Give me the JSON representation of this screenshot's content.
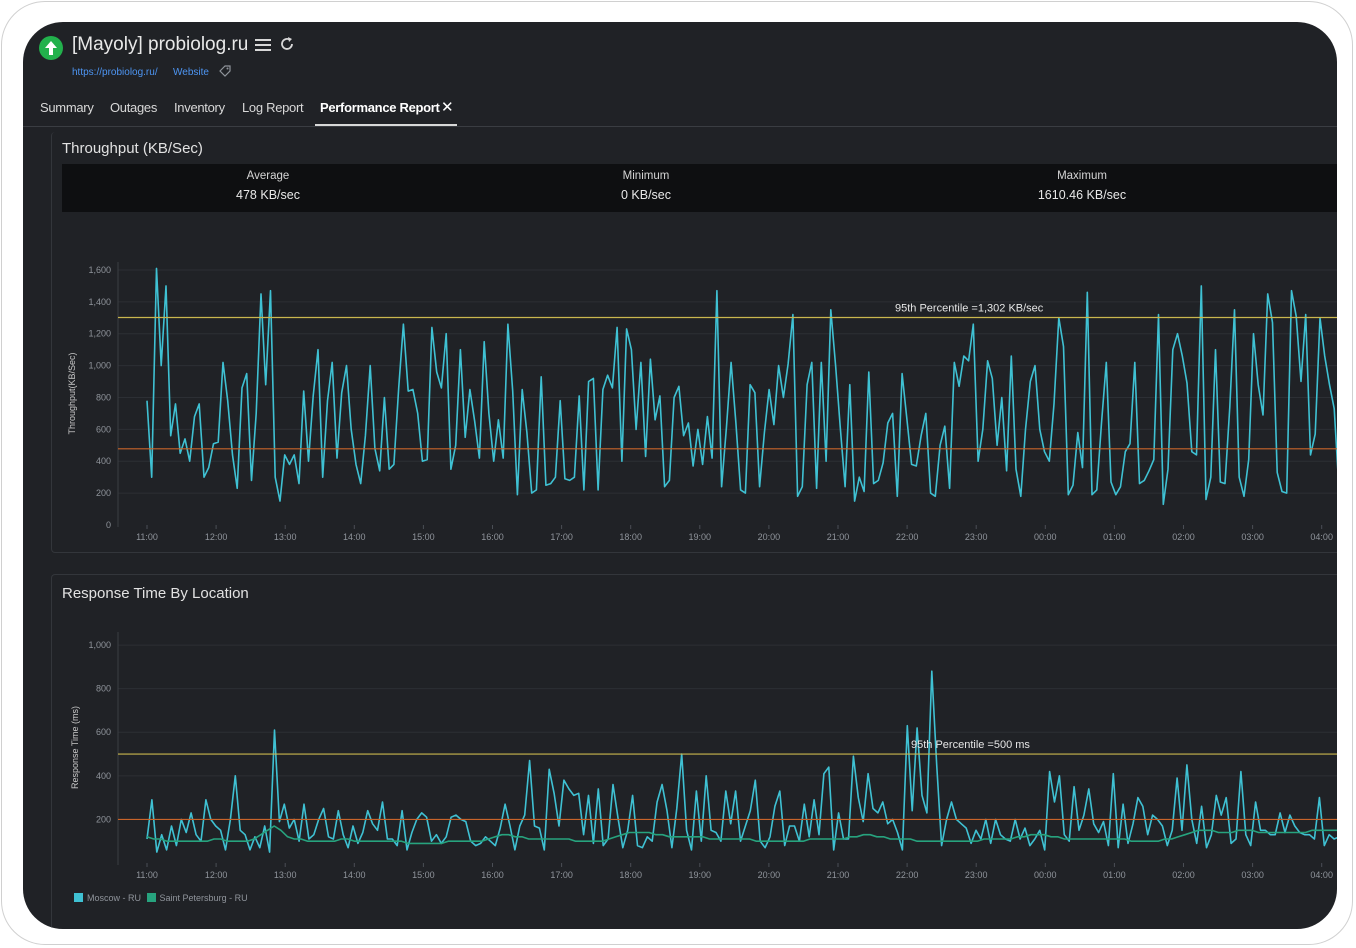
{
  "header": {
    "title": "[Mayoly] probiolog.ru",
    "url": "https://probiolog.ru/",
    "type": "Website",
    "status_color": "#22b14c"
  },
  "tabs": [
    {
      "label": "Summary"
    },
    {
      "label": "Outages"
    },
    {
      "label": "Inventory"
    },
    {
      "label": "Log Report"
    },
    {
      "label": "Performance Report",
      "active": true
    }
  ],
  "throughput": {
    "title": "Throughput (KB/Sec)",
    "stats": [
      {
        "label": "Average",
        "value": "478 KB/sec"
      },
      {
        "label": "Minimum",
        "value": "0 KB/sec"
      },
      {
        "label": "Maximum",
        "value": "1610.46 KB/sec"
      }
    ]
  },
  "response": {
    "title": "Response Time By Location"
  },
  "legend": [
    {
      "label": "Moscow - RU",
      "color": "#3fc1d3"
    },
    {
      "label": "Saint Petersburg - RU",
      "color": "#27a37e"
    }
  ],
  "chart_data": [
    {
      "type": "line",
      "ylabel": "Throughput(KB/Sec)",
      "ylim": [
        0,
        1650
      ],
      "yticks": [
        "0",
        "200",
        "400",
        "600",
        "800",
        "1,000",
        "1,200",
        "1,400",
        "1,600"
      ],
      "xticks": [
        "11:00",
        "12:00",
        "13:00",
        "14:00",
        "15:00",
        "16:00",
        "17:00",
        "18:00",
        "19:00",
        "20:00",
        "21:00",
        "22:00",
        "23:00",
        "00:00",
        "01:00",
        "02:00",
        "03:00",
        "04:00"
      ],
      "x_range_hours": [
        0,
        17.25
      ],
      "average_line": {
        "value": 478,
        "color": "#c8642a"
      },
      "percentile_line": {
        "value": 1302,
        "color": "#c9b74e",
        "label": "95th Percentile =1,302 KB/sec"
      },
      "grid": true,
      "series": [
        {
          "color": "#3fc1d3",
          "values": [
            780,
            300,
            1610,
            1000,
            1500,
            560,
            760,
            450,
            540,
            400,
            680,
            760,
            300,
            360,
            510,
            520,
            1020,
            780,
            440,
            230,
            860,
            950,
            280,
            700,
            1450,
            880,
            1470,
            300,
            150,
            440,
            380,
            440,
            260,
            840,
            400,
            810,
            1100,
            300,
            780,
            1020,
            420,
            830,
            1000,
            600,
            380,
            260,
            560,
            1000,
            480,
            340,
            800,
            350,
            380,
            860,
            1260,
            840,
            850,
            700,
            400,
            410,
            1240,
            960,
            860,
            1200,
            350,
            500,
            1100,
            550,
            850,
            650,
            420,
            1150,
            700,
            400,
            660,
            420,
            1260,
            840,
            190,
            850,
            580,
            200,
            220,
            930,
            250,
            260,
            300,
            780,
            290,
            280,
            300,
            810,
            220,
            900,
            920,
            220,
            850,
            940,
            860,
            1240,
            400,
            1230,
            1100,
            600,
            1020,
            430,
            1040,
            660,
            810,
            240,
            280,
            800,
            870,
            560,
            640,
            370,
            600,
            380,
            680,
            420,
            1470,
            240,
            610,
            1020,
            640,
            220,
            200,
            880,
            830,
            240,
            580,
            850,
            630,
            1000,
            800,
            1010,
            1320,
            180,
            240,
            880,
            1020,
            230,
            1020,
            400,
            1350,
            1000,
            610,
            240,
            880,
            150,
            300,
            210,
            960,
            260,
            280,
            390,
            640,
            700,
            180,
            950,
            670,
            380,
            370,
            560,
            700,
            200,
            180,
            500,
            620,
            230,
            1020,
            870,
            1060,
            1030,
            1260,
            400,
            600,
            1030,
            920,
            500,
            800,
            340,
            1060,
            350,
            180,
            600,
            900,
            1000,
            600,
            460,
            400,
            760,
            1300,
            1120,
            190,
            250,
            580,
            360,
            1460,
            190,
            220,
            640,
            1020,
            270,
            190,
            240,
            460,
            510,
            1020,
            260,
            280,
            340,
            410,
            1320,
            130,
            350,
            1100,
            1200,
            1060,
            890,
            460,
            440,
            1500,
            160,
            300,
            1100,
            270,
            260,
            740,
            1350,
            300,
            180,
            410,
            1200,
            880,
            690,
            1450,
            1270,
            330,
            210,
            200,
            1470,
            1310,
            900,
            1320,
            440,
            570,
            1300,
            1060,
            880,
            730,
            220
          ]
        }
      ]
    },
    {
      "type": "line",
      "ylabel": "Response Time (ms)",
      "ylim": [
        0,
        1060
      ],
      "yticks": [
        "200",
        "400",
        "600",
        "800",
        "1,000"
      ],
      "xticks": [
        "11:00",
        "12:00",
        "13:00",
        "14:00",
        "15:00",
        "16:00",
        "17:00",
        "18:00",
        "19:00",
        "20:00",
        "21:00",
        "22:00",
        "23:00",
        "00:00",
        "01:00",
        "02:00",
        "03:00",
        "04:00"
      ],
      "x_range_hours": [
        0,
        17.25
      ],
      "average_line": {
        "value": 200,
        "color": "#c8642a"
      },
      "percentile_line": {
        "value": 500,
        "color": "#c9b74e",
        "label": "95th Percentile =500 ms"
      },
      "grid": true,
      "series": [
        {
          "name": "Moscow - RU",
          "color": "#3fc1d3",
          "values": [
            110,
            290,
            50,
            130,
            60,
            170,
            80,
            200,
            140,
            230,
            130,
            100,
            290,
            200,
            170,
            150,
            60,
            200,
            400,
            150,
            130,
            60,
            120,
            70,
            170,
            50,
            610,
            190,
            270,
            160,
            200,
            100,
            270,
            110,
            130,
            200,
            250,
            120,
            110,
            240,
            130,
            70,
            170,
            90,
            140,
            240,
            180,
            150,
            280,
            110,
            110,
            80,
            240,
            60,
            140,
            200,
            230,
            210,
            100,
            130,
            90,
            120,
            210,
            220,
            200,
            190,
            100,
            80,
            90,
            120,
            100,
            80,
            160,
            270,
            170,
            60,
            170,
            220,
            470,
            170,
            160,
            60,
            430,
            320,
            170,
            380,
            340,
            310,
            320,
            130,
            310,
            90,
            340,
            80,
            110,
            360,
            210,
            70,
            150,
            310,
            80,
            70,
            120,
            100,
            280,
            360,
            240,
            70,
            250,
            500,
            150,
            60,
            330,
            100,
            400,
            150,
            140,
            100,
            330,
            180,
            330,
            100,
            170,
            240,
            380,
            100,
            70,
            120,
            260,
            330,
            80,
            170,
            170,
            100,
            270,
            120,
            290,
            130,
            410,
            440,
            60,
            230,
            110,
            110,
            490,
            300,
            190,
            410,
            250,
            230,
            280,
            180,
            200,
            140,
            60,
            630,
            240,
            620,
            310,
            230,
            880,
            450,
            80,
            200,
            280,
            200,
            180,
            160,
            90,
            150,
            110,
            200,
            90,
            200,
            130,
            110,
            100,
            200,
            110,
            160,
            80,
            110,
            150,
            60,
            420,
            280,
            400,
            130,
            100,
            350,
            150,
            220,
            340,
            180,
            140,
            190,
            80,
            410,
            70,
            270,
            90,
            180,
            300,
            260,
            130,
            220,
            200,
            170,
            80,
            150,
            390,
            150,
            450,
            200,
            90,
            260,
            70,
            130,
            310,
            220,
            300,
            90,
            110,
            420,
            130,
            80,
            280,
            150,
            150,
            130,
            130,
            230,
            140,
            220,
            170,
            140,
            130,
            130,
            110,
            300,
            80,
            130,
            110,
            120
          ]
        },
        {
          "name": "Saint Petersburg - RU",
          "color": "#27a37e",
          "values": [
            120,
            110,
            110,
            100,
            100,
            100,
            100,
            100,
            100,
            100,
            110,
            110,
            100,
            100,
            100,
            100,
            110,
            130,
            150,
            170,
            150,
            120,
            110,
            110,
            100,
            100,
            100,
            100,
            100,
            110,
            110,
            100,
            100,
            100,
            100,
            100,
            100,
            100,
            100,
            90,
            90,
            90,
            90,
            90,
            90,
            100,
            100,
            100,
            100,
            100,
            100,
            110,
            120,
            130,
            130,
            120,
            120,
            110,
            110,
            110,
            110,
            110,
            110,
            110,
            100,
            100,
            100,
            100,
            100,
            110,
            120,
            130,
            140,
            140,
            140,
            140,
            130,
            130,
            120,
            120,
            120,
            120,
            120,
            120,
            110,
            110,
            110,
            110,
            110,
            110,
            110,
            100,
            100,
            100,
            100,
            100,
            100,
            100,
            100,
            110,
            110,
            110,
            110,
            110,
            110,
            120,
            120,
            130,
            130,
            120,
            120,
            110,
            110,
            110,
            110,
            100,
            100,
            100,
            100,
            100,
            100,
            100,
            100,
            100,
            100,
            110,
            110,
            110,
            110,
            110,
            120,
            120,
            130,
            130,
            130,
            120,
            120,
            110,
            110,
            110,
            110,
            110,
            110,
            110,
            110,
            110,
            110,
            100,
            100,
            100,
            100,
            100,
            110,
            110,
            120,
            130,
            140,
            150,
            150,
            150,
            140,
            140,
            140,
            150,
            150,
            150,
            140,
            140,
            140,
            140,
            140,
            140,
            140,
            140,
            150,
            150,
            150,
            150,
            150
          ]
        }
      ]
    }
  ]
}
